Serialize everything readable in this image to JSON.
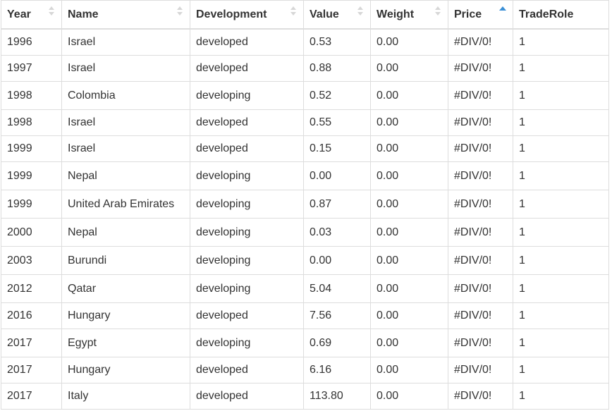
{
  "table": {
    "columns": [
      {
        "label": "Year",
        "sort": "none"
      },
      {
        "label": "Name",
        "sort": "none"
      },
      {
        "label": "Development",
        "sort": "none"
      },
      {
        "label": "Value",
        "sort": "none"
      },
      {
        "label": "Weight",
        "sort": "none"
      },
      {
        "label": "Price",
        "sort": "ascending"
      },
      {
        "label": "TradeRole",
        "sort": "none"
      }
    ],
    "rows": [
      [
        "1996",
        "Israel",
        "developed",
        "0.53",
        "0.00",
        "#DIV/0!",
        "1"
      ],
      [
        "1997",
        "Israel",
        "developed",
        "0.88",
        "0.00",
        "#DIV/0!",
        "1"
      ],
      [
        "1998",
        "Colombia",
        "developing",
        "0.52",
        "0.00",
        "#DIV/0!",
        "1"
      ],
      [
        "1998",
        "Israel",
        "developed",
        "0.55",
        "0.00",
        "#DIV/0!",
        "1"
      ],
      [
        "1999",
        "Israel",
        "developed",
        "0.15",
        "0.00",
        "#DIV/0!",
        "1"
      ],
      [
        "1999",
        "Nepal",
        "developing",
        "0.00",
        "0.00",
        "#DIV/0!",
        "1"
      ],
      [
        "1999",
        "United Arab Emirates",
        "developing",
        "0.87",
        "0.00",
        "#DIV/0!",
        "1"
      ],
      [
        "2000",
        "Nepal",
        "developing",
        "0.03",
        "0.00",
        "#DIV/0!",
        "1"
      ],
      [
        "2003",
        "Burundi",
        "developing",
        "0.00",
        "0.00",
        "#DIV/0!",
        "1"
      ],
      [
        "2012",
        "Qatar",
        "developing",
        "5.04",
        "0.00",
        "#DIV/0!",
        "1"
      ],
      [
        "2016",
        "Hungary",
        "developed",
        "7.56",
        "0.00",
        "#DIV/0!",
        "1"
      ],
      [
        "2017",
        "Egypt",
        "developing",
        "0.69",
        "0.00",
        "#DIV/0!",
        "1"
      ],
      [
        "2017",
        "Hungary",
        "developed",
        "6.16",
        "0.00",
        "#DIV/0!",
        "1"
      ],
      [
        "2017",
        "Italy",
        "developed",
        "113.80",
        "0.00",
        "#DIV/0!",
        "1"
      ]
    ]
  },
  "colors": {
    "sort_active": "#3a8fd6",
    "sort_inactive": "#d7d7d7",
    "border": "#dddddd",
    "text": "#333333"
  }
}
